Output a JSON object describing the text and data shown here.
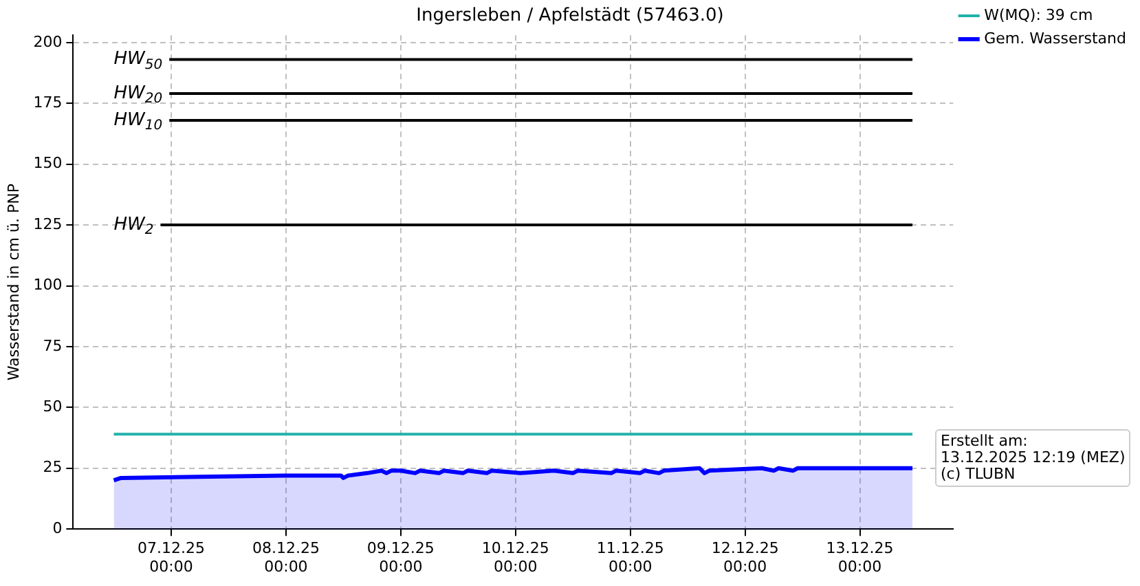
{
  "chart_data": {
    "type": "line",
    "title": "Ingersleben / Apfelstädt (57463.0)",
    "ylabel": "Wasserstand in cm ü. PNP",
    "xlim": [
      "2025-12-06T03:30",
      "2025-12-13T19:30"
    ],
    "xticks": [
      {
        "value": "2025-12-07T00:00",
        "label": "07.12.25\n00:00"
      },
      {
        "value": "2025-12-08T00:00",
        "label": "08.12.25\n00:00"
      },
      {
        "value": "2025-12-09T00:00",
        "label": "09.12.25\n00:00"
      },
      {
        "value": "2025-12-10T00:00",
        "label": "10.12.25\n00:00"
      },
      {
        "value": "2025-12-11T00:00",
        "label": "11.12.25\n00:00"
      },
      {
        "value": "2025-12-12T00:00",
        "label": "12.12.25\n00:00"
      },
      {
        "value": "2025-12-13T00:00",
        "label": "13.12.25\n00:00"
      }
    ],
    "ylim": [
      0,
      203
    ],
    "yticks": [
      0,
      25,
      50,
      75,
      100,
      125,
      150,
      175,
      200
    ],
    "grid": true,
    "legend": "top right",
    "line_style": "solid",
    "marker": "none",
    "series": [
      {
        "name": "W(MQ): 39 cm",
        "type": "line",
        "color": "#20b2aa",
        "x": [
          "2025-12-06T12:00",
          "2025-12-13T11:00"
        ],
        "values": [
          39,
          39
        ]
      },
      {
        "name": "Gem. Wasserstand",
        "type": "area",
        "color": "#0000ff",
        "x": [
          "2025-12-06T12:00",
          "2025-12-06T13:30",
          "2025-12-07T23:30",
          "2025-12-08T11:30",
          "2025-12-08T12:00",
          "2025-12-08T13:00",
          "2025-12-08T17:00",
          "2025-12-08T20:00",
          "2025-12-08T21:00",
          "2025-12-08T22:00",
          "2025-12-09T00:00",
          "2025-12-09T03:00",
          "2025-12-09T04:00",
          "2025-12-09T08:00",
          "2025-12-09T09:00",
          "2025-12-09T13:00",
          "2025-12-09T14:00",
          "2025-12-09T18:00",
          "2025-12-09T19:00",
          "2025-12-10T01:00",
          "2025-12-10T08:00",
          "2025-12-10T12:00",
          "2025-12-10T13:00",
          "2025-12-10T20:00",
          "2025-12-10T21:00",
          "2025-12-11T02:00",
          "2025-12-11T03:00",
          "2025-12-11T06:00",
          "2025-12-11T07:00",
          "2025-12-11T14:30",
          "2025-12-11T15:30",
          "2025-12-11T16:30",
          "2025-12-12T03:30",
          "2025-12-12T06:00",
          "2025-12-12T07:00",
          "2025-12-12T10:00",
          "2025-12-12T11:00",
          "2025-12-13T11:00"
        ],
        "values": [
          20,
          21,
          22,
          22,
          21,
          22,
          23,
          24,
          23,
          24,
          24,
          23,
          24,
          23,
          24,
          23,
          24,
          23,
          24,
          23,
          24,
          23,
          24,
          23,
          24,
          23,
          24,
          23,
          24,
          25,
          23,
          24,
          25,
          24,
          25,
          24,
          25,
          25
        ]
      }
    ],
    "ref_lines": [
      {
        "axis": "y",
        "value": 193,
        "label": "HW$_{50}$",
        "color": "#000000"
      },
      {
        "axis": "y",
        "value": 179,
        "label": "HW$_{20}$",
        "color": "#000000"
      },
      {
        "axis": "y",
        "value": 168,
        "label": "HW$_{10}$",
        "color": "#000000"
      },
      {
        "axis": "y",
        "value": 125,
        "label": "HW$_{2}$",
        "color": "#000000"
      }
    ],
    "annotations": [
      "Erstellt am:\n13.12.2025 12:19 (MEZ)\n(c) TLUBN"
    ]
  }
}
